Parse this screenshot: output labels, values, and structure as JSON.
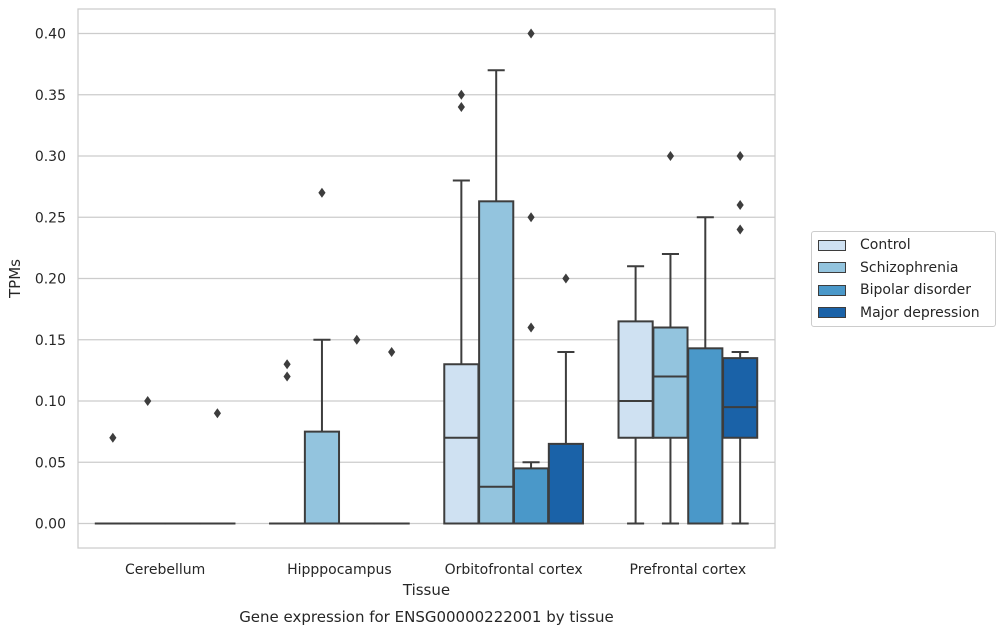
{
  "chart_data": {
    "type": "box",
    "title": "Gene expression for ENSG00000222001 by tissue",
    "xlabel": "Tissue",
    "ylabel": "TPMs",
    "ylim": [
      -0.02,
      0.42
    ],
    "yticks": [
      "0.00",
      "0.05",
      "0.10",
      "0.15",
      "0.20",
      "0.25",
      "0.30",
      "0.35",
      "0.40"
    ],
    "grid": true,
    "legend_placement": "right",
    "categories": [
      "Cerebellum",
      "Hipppocampus",
      "Orbitofrontal cortex",
      "Prefrontal cortex"
    ],
    "series": [
      {
        "name": "Control",
        "color": "#cfe1f2",
        "boxes": [
          {
            "q1": 0,
            "median": 0,
            "q3": 0,
            "whislo": 0,
            "whishi": 0,
            "fliers": [
              0.07
            ]
          },
          {
            "q1": 0,
            "median": 0,
            "q3": 0,
            "whislo": 0,
            "whishi": 0,
            "fliers": [
              0.12,
              0.13
            ]
          },
          {
            "q1": 0,
            "median": 0.07,
            "q3": 0.13,
            "whislo": 0,
            "whishi": 0.28,
            "fliers": [
              0.34,
              0.35
            ]
          },
          {
            "q1": 0.07,
            "median": 0.1,
            "q3": 0.165,
            "whislo": 0,
            "whishi": 0.21,
            "fliers": []
          }
        ]
      },
      {
        "name": "Schizophrenia",
        "color": "#93c4de",
        "boxes": [
          {
            "q1": 0,
            "median": 0,
            "q3": 0,
            "whislo": 0,
            "whishi": 0,
            "fliers": [
              0.1
            ]
          },
          {
            "q1": 0,
            "median": 0,
            "q3": 0.075,
            "whislo": 0,
            "whishi": 0.15,
            "fliers": [
              0.27
            ]
          },
          {
            "q1": 0,
            "median": 0.03,
            "q3": 0.263,
            "whislo": 0,
            "whishi": 0.37,
            "fliers": []
          },
          {
            "q1": 0.07,
            "median": 0.12,
            "q3": 0.16,
            "whislo": 0,
            "whishi": 0.22,
            "fliers": [
              0.3
            ]
          }
        ]
      },
      {
        "name": "Bipolar disorder",
        "color": "#4a98c9",
        "boxes": [
          {
            "q1": 0,
            "median": 0,
            "q3": 0,
            "whislo": 0,
            "whishi": 0,
            "fliers": []
          },
          {
            "q1": 0,
            "median": 0,
            "q3": 0,
            "whislo": 0,
            "whishi": 0,
            "fliers": [
              0.15
            ]
          },
          {
            "q1": 0,
            "median": 0,
            "q3": 0.045,
            "whislo": 0,
            "whishi": 0.05,
            "fliers": [
              0.16,
              0.25,
              0.4
            ]
          },
          {
            "q1": 0,
            "median": 0,
            "q3": 0.143,
            "whislo": 0,
            "whishi": 0.25,
            "fliers": []
          }
        ]
      },
      {
        "name": "Major depression",
        "color": "#1a62a8",
        "boxes": [
          {
            "q1": 0,
            "median": 0,
            "q3": 0,
            "whislo": 0,
            "whishi": 0,
            "fliers": [
              0.09
            ]
          },
          {
            "q1": 0,
            "median": 0,
            "q3": 0,
            "whislo": 0,
            "whishi": 0,
            "fliers": [
              0.14
            ]
          },
          {
            "q1": 0,
            "median": 0,
            "q3": 0.065,
            "whislo": 0,
            "whishi": 0.14,
            "fliers": [
              0.2
            ]
          },
          {
            "q1": 0.07,
            "median": 0.095,
            "q3": 0.135,
            "whislo": 0,
            "whishi": 0.14,
            "fliers": [
              0.24,
              0.26,
              0.3
            ]
          }
        ]
      }
    ]
  }
}
